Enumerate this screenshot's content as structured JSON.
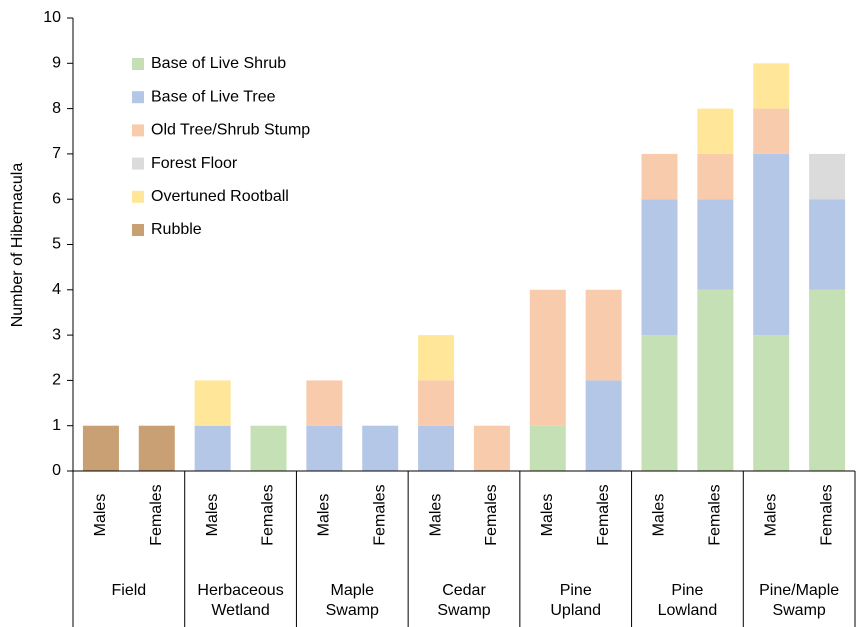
{
  "chart_data": {
    "type": "stacked-bar",
    "y_label": "Number of Hibernacula",
    "categories": [
      "Males",
      "Females",
      "Males",
      "Females",
      "Males",
      "Females",
      "Males",
      "Females",
      "Males",
      "Females",
      "Males",
      "Females",
      "Males",
      "Females"
    ],
    "groups": [
      [
        "Field"
      ],
      [
        "Herbaceous",
        "Wetland"
      ],
      [
        "Maple",
        "Swamp"
      ],
      [
        "Cedar",
        "Swamp"
      ],
      [
        "Pine",
        "Upland"
      ],
      [
        "Pine",
        "Lowland"
      ],
      [
        "Pine/Maple",
        "Swamp"
      ]
    ],
    "series": [
      {
        "name": "Base of Live Shrub",
        "color": "#c5e0b4",
        "values": [
          0,
          0,
          0,
          1,
          0,
          0,
          0,
          0,
          1,
          0,
          3,
          4,
          3,
          4
        ]
      },
      {
        "name": "Base of Live Tree",
        "color": "#b4c7e7",
        "values": [
          0,
          0,
          1,
          0,
          1,
          1,
          1,
          0,
          0,
          2,
          3,
          2,
          4,
          2
        ]
      },
      {
        "name": "Old Tree/Shrub Stump",
        "color": "#f8cbad",
        "values": [
          0,
          0,
          0,
          0,
          1,
          0,
          1,
          1,
          3,
          2,
          1,
          1,
          1,
          0
        ]
      },
      {
        "name": "Forest Floor",
        "color": "#dbdbdb",
        "values": [
          0,
          0,
          0,
          0,
          0,
          0,
          0,
          0,
          0,
          0,
          0,
          0,
          0,
          1
        ]
      },
      {
        "name": "Overtuned Rootball",
        "color": "#ffe699",
        "values": [
          0,
          0,
          1,
          0,
          0,
          0,
          1,
          0,
          0,
          0,
          0,
          1,
          1,
          0
        ]
      },
      {
        "name": "Rubble",
        "color": "#c9a074",
        "values": [
          1,
          1,
          0,
          0,
          0,
          0,
          0,
          0,
          0,
          0,
          0,
          0,
          0,
          0
        ]
      }
    ],
    "ylim": [
      0,
      10
    ],
    "yticks": [
      0,
      1,
      2,
      3,
      4,
      5,
      6,
      7,
      8,
      9,
      10
    ],
    "legend": "upper left"
  }
}
